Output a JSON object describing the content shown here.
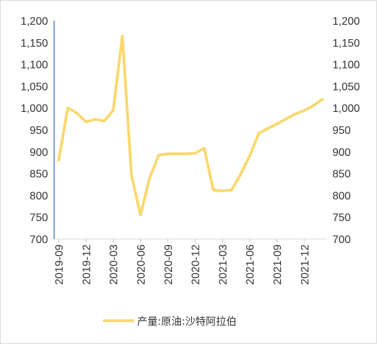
{
  "chart_data": {
    "type": "line",
    "title": "",
    "xlabel": "",
    "ylabel": "",
    "ylim": [
      700,
      1200
    ],
    "y_ticks": [
      "700",
      "750",
      "800",
      "850",
      "900",
      "950",
      "1,000",
      "1,050",
      "1,100",
      "1,150",
      "1,200"
    ],
    "y_tick_values": [
      700,
      750,
      800,
      850,
      900,
      950,
      1000,
      1050,
      1100,
      1150,
      1200
    ],
    "right_axis_mirrors_left": true,
    "x_tick_labels": [
      "2019-09",
      "2019-12",
      "2020-03",
      "2020-06",
      "2020-09",
      "2020-12",
      "2021-03",
      "2021-06",
      "2021-09",
      "2021-12"
    ],
    "x_tick_every": 3,
    "grid": false,
    "legend_position": "bottom",
    "x": [
      "2019-09",
      "2019-10",
      "2019-11",
      "2019-12",
      "2020-01",
      "2020-02",
      "2020-03",
      "2020-04",
      "2020-05",
      "2020-06",
      "2020-07",
      "2020-08",
      "2020-09",
      "2020-10",
      "2020-11",
      "2020-12",
      "2021-01",
      "2021-02",
      "2021-03",
      "2021-04",
      "2021-05",
      "2021-06",
      "2021-07",
      "2021-08",
      "2021-09",
      "2021-10",
      "2021-11",
      "2021-12",
      "2022-01",
      "2022-02"
    ],
    "series": [
      {
        "name": "产量:原油:沙特阿拉伯",
        "color": "#fad86e",
        "values": [
          880,
          1000,
          988,
          968,
          974,
          970,
          995,
          1165,
          845,
          755,
          840,
          892,
          895,
          895,
          895,
          896,
          908,
          812,
          810,
          812,
          848,
          890,
          942,
          953,
          963,
          975,
          986,
          994,
          1005,
          1020
        ]
      }
    ]
  }
}
